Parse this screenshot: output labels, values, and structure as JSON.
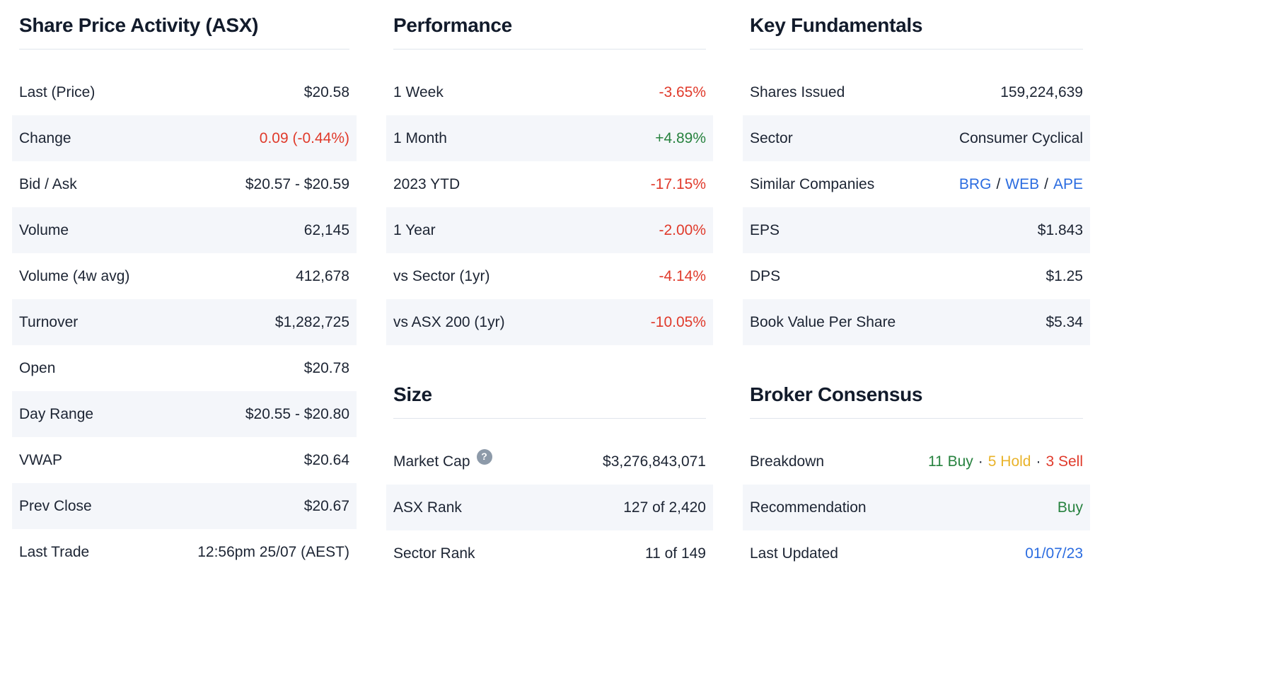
{
  "colors": {
    "text": "#1c2433",
    "negative": "#e03a2b",
    "positive": "#27823f",
    "hold": "#e9b32a",
    "link": "#2b6ce0",
    "row_alt_background": "#f4f6fa",
    "divider": "#e0e5ec",
    "help_icon_background": "#8d9aa9"
  },
  "icons": {
    "help": "?"
  },
  "sections": {
    "share_price": {
      "title": "Share Price Activity (ASX)",
      "rows": [
        {
          "label": "Last (Price)",
          "value": "$20.58"
        },
        {
          "label": "Change",
          "value": "0.09 (-0.44%)",
          "color": "red"
        },
        {
          "label": "Bid / Ask",
          "value": "$20.57 - $20.59"
        },
        {
          "label": "Volume",
          "value": "62,145"
        },
        {
          "label": "Volume (4w avg)",
          "value": "412,678"
        },
        {
          "label": "Turnover",
          "value": "$1,282,725"
        },
        {
          "label": "Open",
          "value": "$20.78"
        },
        {
          "label": "Day Range",
          "value": "$20.55 - $20.80"
        },
        {
          "label": "VWAP",
          "value": "$20.64"
        },
        {
          "label": "Prev Close",
          "value": "$20.67"
        },
        {
          "label": "Last Trade",
          "value": "12:56pm 25/07 (AEST)"
        }
      ]
    },
    "performance": {
      "title": "Performance",
      "rows": [
        {
          "label": "1 Week",
          "value": "-3.65%",
          "color": "red"
        },
        {
          "label": "1 Month",
          "value": "+4.89%",
          "color": "green"
        },
        {
          "label": "2023 YTD",
          "value": "-17.15%",
          "color": "red"
        },
        {
          "label": "1 Year",
          "value": "-2.00%",
          "color": "red"
        },
        {
          "label": "vs Sector (1yr)",
          "value": "-4.14%",
          "color": "red"
        },
        {
          "label": "vs ASX 200 (1yr)",
          "value": "-10.05%",
          "color": "red"
        }
      ]
    },
    "size": {
      "title": "Size",
      "rows": [
        {
          "label": "Market Cap",
          "value": "$3,276,843,071",
          "help_icon": "?"
        },
        {
          "label": "ASX Rank",
          "value": "127 of 2,420"
        },
        {
          "label": "Sector Rank",
          "value": "11 of 149"
        }
      ]
    },
    "fundamentals": {
      "title": "Key Fundamentals",
      "rows": [
        {
          "label": "Shares Issued",
          "value": "159,224,639"
        },
        {
          "label": "Sector",
          "value": "Consumer Cyclical"
        },
        {
          "label": "Similar Companies",
          "links": [
            "BRG",
            "WEB",
            "APE"
          ],
          "separator": "/"
        },
        {
          "label": "EPS",
          "value": "$1.843"
        },
        {
          "label": "DPS",
          "value": "$1.25"
        },
        {
          "label": "Book Value Per Share",
          "value": "$5.34"
        }
      ]
    },
    "broker": {
      "title": "Broker Consensus",
      "rows": [
        {
          "label": "Breakdown",
          "separator": "·",
          "parts": [
            {
              "text": "11 Buy",
              "color": "green"
            },
            {
              "text": "5 Hold",
              "color": "gold"
            },
            {
              "text": "3 Sell",
              "color": "red"
            }
          ]
        },
        {
          "label": "Recommendation",
          "value": "Buy",
          "color": "green"
        },
        {
          "label": "Last Updated",
          "value": "01/07/23",
          "color": "blue",
          "link": true
        }
      ]
    }
  }
}
